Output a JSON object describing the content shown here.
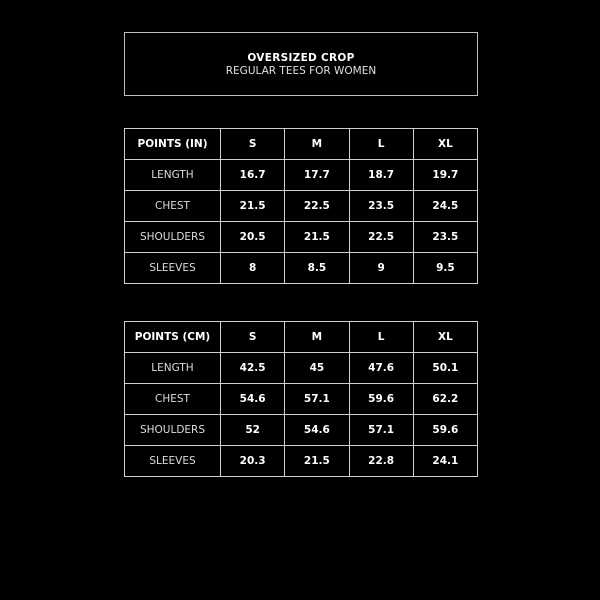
{
  "header": {
    "title": "OVERSIZED CROP",
    "subtitle": "REGULAR TEES FOR WOMEN"
  },
  "tables": [
    {
      "headers": [
        "POINTS (IN)",
        "S",
        "M",
        "L",
        "XL"
      ],
      "rows": [
        {
          "label": "LENGTH",
          "values": [
            "16.7",
            "17.7",
            "18.7",
            "19.7"
          ]
        },
        {
          "label": "CHEST",
          "values": [
            "21.5",
            "22.5",
            "23.5",
            "24.5"
          ]
        },
        {
          "label": "SHOULDERS",
          "values": [
            "20.5",
            "21.5",
            "22.5",
            "23.5"
          ]
        },
        {
          "label": "SLEEVES",
          "values": [
            "8",
            "8.5",
            "9",
            "9.5"
          ]
        }
      ]
    },
    {
      "headers": [
        "POINTS (CM)",
        "S",
        "M",
        "L",
        "XL"
      ],
      "rows": [
        {
          "label": "LENGTH",
          "values": [
            "42.5",
            "45",
            "47.6",
            "50.1"
          ]
        },
        {
          "label": "CHEST",
          "values": [
            "54.6",
            "57.1",
            "59.6",
            "62.2"
          ]
        },
        {
          "label": "SHOULDERS",
          "values": [
            "52",
            "54.6",
            "57.1",
            "59.6"
          ]
        },
        {
          "label": "SLEEVES",
          "values": [
            "20.3",
            "21.5",
            "22.8",
            "24.1"
          ]
        }
      ]
    }
  ]
}
